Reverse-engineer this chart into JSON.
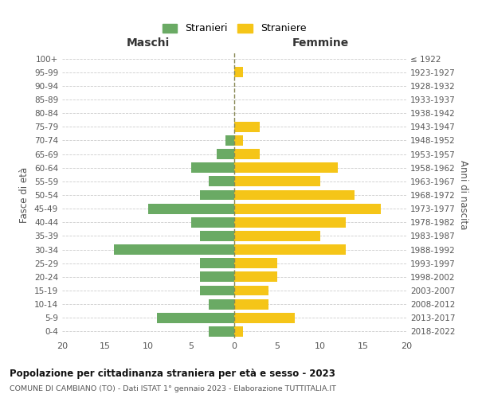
{
  "age_groups_bottom_to_top": [
    "0-4",
    "5-9",
    "10-14",
    "15-19",
    "20-24",
    "25-29",
    "30-34",
    "35-39",
    "40-44",
    "45-49",
    "50-54",
    "55-59",
    "60-64",
    "65-69",
    "70-74",
    "75-79",
    "80-84",
    "85-89",
    "90-94",
    "95-99",
    "100+"
  ],
  "birth_years_bottom_to_top": [
    "2018-2022",
    "2013-2017",
    "2008-2012",
    "2003-2007",
    "1998-2002",
    "1993-1997",
    "1988-1992",
    "1983-1987",
    "1978-1982",
    "1973-1977",
    "1968-1972",
    "1963-1967",
    "1958-1962",
    "1953-1957",
    "1948-1952",
    "1943-1947",
    "1938-1942",
    "1933-1937",
    "1928-1932",
    "1923-1927",
    "≤ 1922"
  ],
  "maschi_bottom_to_top": [
    3,
    9,
    3,
    4,
    4,
    4,
    14,
    4,
    5,
    10,
    4,
    3,
    5,
    2,
    1,
    0,
    0,
    0,
    0,
    0,
    0
  ],
  "femmine_bottom_to_top": [
    1,
    7,
    4,
    4,
    5,
    5,
    13,
    10,
    13,
    17,
    14,
    10,
    12,
    3,
    1,
    3,
    0,
    0,
    0,
    1,
    0
  ],
  "color_maschi": "#6aaa64",
  "color_femmine": "#f5c518",
  "xlim": 20,
  "title": "Popolazione per cittadinanza straniera per età e sesso - 2023",
  "subtitle": "COMUNE DI CAMBIANO (TO) - Dati ISTAT 1° gennaio 2023 - Elaborazione TUTTITALIA.IT",
  "xlabel_left": "Maschi",
  "xlabel_right": "Femmine",
  "ylabel_left": "Fasce di età",
  "ylabel_right": "Anni di nascita",
  "legend_maschi": "Stranieri",
  "legend_femmine": "Straniere",
  "bg_color": "#ffffff",
  "grid_color": "#cccccc",
  "bar_height": 0.75
}
